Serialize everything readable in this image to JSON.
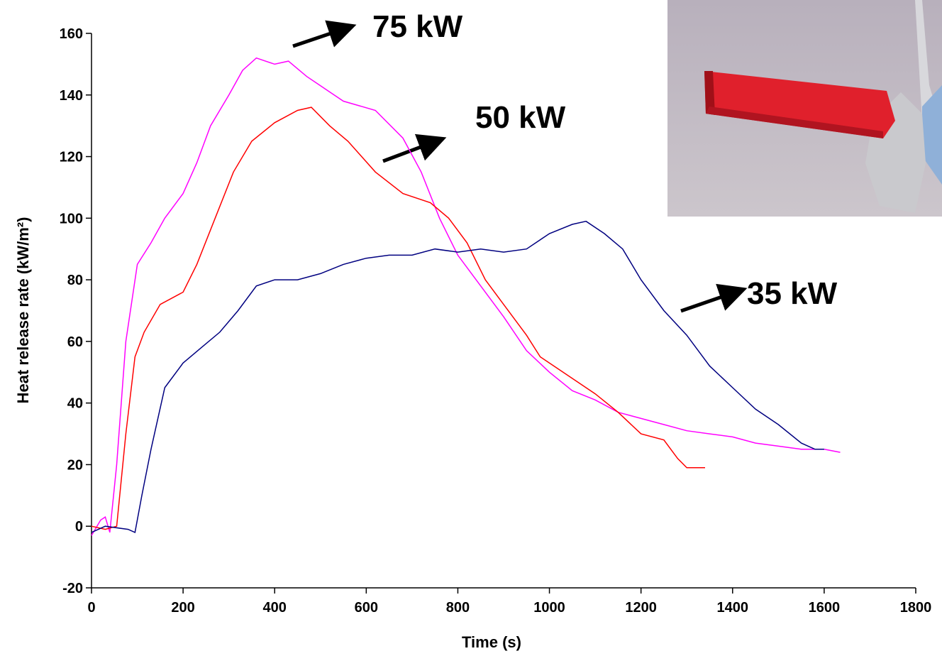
{
  "chart_data": {
    "type": "line",
    "x_label": "Time (s)",
    "y_label": "Heat release rate (kW/m²)",
    "xlim": [
      0,
      1800
    ],
    "xticks": [
      0,
      200,
      400,
      600,
      800,
      1000,
      1200,
      1400,
      1600,
      1800
    ],
    "ylim": [
      -20,
      160
    ],
    "yticks": [
      -20,
      0,
      20,
      40,
      60,
      80,
      100,
      120,
      140,
      160
    ],
    "grid": false,
    "series": [
      {
        "name": "75 kW",
        "color": "#ff00ff",
        "x": [
          0,
          20,
          30,
          40,
          55,
          75,
          100,
          130,
          160,
          200,
          230,
          260,
          300,
          330,
          360,
          400,
          430,
          470,
          500,
          550,
          620,
          680,
          720,
          760,
          800,
          850,
          900,
          950,
          1000,
          1050,
          1100,
          1150,
          1200,
          1250,
          1300,
          1350,
          1400,
          1450,
          1500,
          1550,
          1600,
          1635
        ],
        "values": [
          -3,
          2,
          3,
          -2,
          20,
          60,
          85,
          92,
          100,
          108,
          118,
          130,
          140,
          148,
          152,
          150,
          151,
          146,
          143,
          138,
          135,
          126,
          115,
          100,
          88,
          78,
          68,
          57,
          50,
          44,
          41,
          37,
          35,
          33,
          31,
          30,
          29,
          27,
          26,
          25,
          25,
          24
        ]
      },
      {
        "name": "50 kW",
        "color": "#ff0000",
        "x": [
          0,
          30,
          55,
          75,
          95,
          115,
          150,
          200,
          230,
          270,
          310,
          350,
          400,
          450,
          480,
          520,
          560,
          620,
          680,
          740,
          780,
          820,
          860,
          900,
          950,
          980,
          1050,
          1100,
          1150,
          1200,
          1250,
          1280,
          1300,
          1340
        ],
        "values": [
          0,
          -1,
          0,
          30,
          55,
          63,
          72,
          76,
          85,
          100,
          115,
          125,
          131,
          135,
          136,
          130,
          125,
          115,
          108,
          105,
          100,
          92,
          80,
          72,
          62,
          55,
          48,
          43,
          37,
          30,
          28,
          22,
          19,
          19
        ]
      },
      {
        "name": "35 kW",
        "color": "#000080",
        "x": [
          0,
          30,
          80,
          95,
          110,
          130,
          160,
          200,
          240,
          280,
          320,
          360,
          400,
          450,
          500,
          550,
          600,
          650,
          700,
          750,
          800,
          850,
          900,
          950,
          1000,
          1050,
          1080,
          1120,
          1160,
          1200,
          1250,
          1300,
          1350,
          1400,
          1450,
          1500,
          1550,
          1580,
          1600
        ],
        "values": [
          -2,
          0,
          -1,
          -2,
          10,
          25,
          45,
          53,
          58,
          63,
          70,
          78,
          80,
          80,
          82,
          85,
          87,
          88,
          88,
          90,
          89,
          90,
          89,
          90,
          95,
          98,
          99,
          95,
          90,
          80,
          70,
          62,
          52,
          45,
          38,
          33,
          27,
          25,
          25
        ]
      }
    ]
  }
}
